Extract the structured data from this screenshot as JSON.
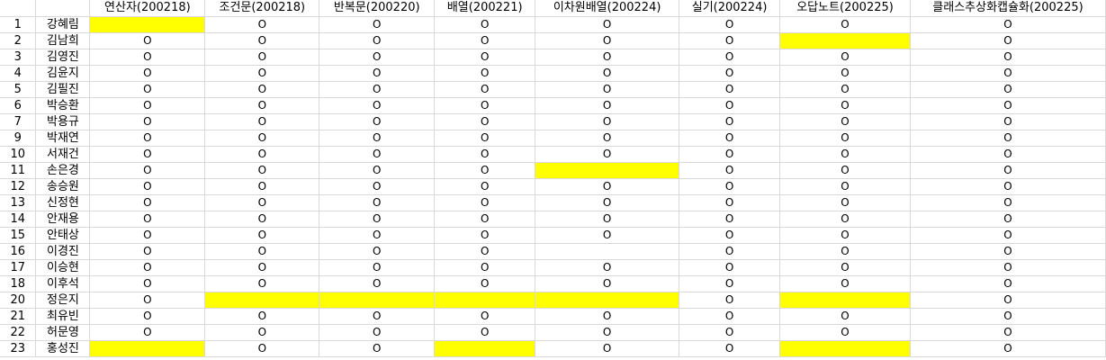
{
  "headers": [
    "",
    "",
    "연산자(200218)",
    "조건문(200218)",
    "반복문(200220)",
    "배열(200221)",
    "이차원배열(200224)",
    "실기(200224)",
    "오답노트(200225)",
    "클래스추상화캡슐화(200225)"
  ],
  "rows": [
    {
      "num": "1",
      "name": "강혜림",
      "cells": [
        "",
        "O",
        "O",
        "O",
        "O",
        "O",
        "O",
        "O"
      ]
    },
    {
      "num": "2",
      "name": "김남희",
      "cells": [
        "O",
        "O",
        "O",
        "O",
        "O",
        "O",
        "",
        "O"
      ]
    },
    {
      "num": "3",
      "name": "김영진",
      "cells": [
        "O",
        "O",
        "O",
        "O",
        "O",
        "O",
        "O",
        "O"
      ]
    },
    {
      "num": "4",
      "name": "김윤지",
      "cells": [
        "O",
        "O",
        "O",
        "O",
        "O",
        "O",
        "O",
        "O"
      ]
    },
    {
      "num": "5",
      "name": "김필진",
      "cells": [
        "O",
        "O",
        "O",
        "O",
        "O",
        "O",
        "O",
        "O"
      ]
    },
    {
      "num": "6",
      "name": "박승환",
      "cells": [
        "O",
        "O",
        "O",
        "O",
        "O",
        "O",
        "O",
        "O"
      ]
    },
    {
      "num": "7",
      "name": "박용규",
      "cells": [
        "O",
        "O",
        "O",
        "O",
        "O",
        "O",
        "O",
        "O"
      ]
    },
    {
      "num": "9",
      "name": "박재연",
      "cells": [
        "O",
        "O",
        "O",
        "O",
        "O",
        "O",
        "O",
        "O"
      ]
    },
    {
      "num": "10",
      "name": "서재건",
      "cells": [
        "O",
        "O",
        "O",
        "O",
        "O",
        "O",
        "O",
        "O"
      ]
    },
    {
      "num": "11",
      "name": "손은경",
      "cells": [
        "O",
        "O",
        "O",
        "O",
        "",
        "O",
        "O",
        "O"
      ]
    },
    {
      "num": "12",
      "name": "송승원",
      "cells": [
        "O",
        "O",
        "O",
        "O",
        "O",
        "O",
        "O",
        "O"
      ]
    },
    {
      "num": "13",
      "name": "신정현",
      "cells": [
        "O",
        "O",
        "O",
        "O",
        "O",
        "O",
        "O",
        "O"
      ]
    },
    {
      "num": "14",
      "name": "안재용",
      "cells": [
        "O",
        "O",
        "O",
        "O",
        "O",
        "O",
        "O",
        "O"
      ]
    },
    {
      "num": "15",
      "name": "안태상",
      "cells": [
        "O",
        "O",
        "O",
        "O",
        "O",
        "O",
        "O",
        "O"
      ]
    },
    {
      "num": "16",
      "name": "이경진",
      "cells": [
        "O",
        "O",
        "O",
        "O",
        "",
        "O",
        "O",
        "O"
      ]
    },
    {
      "num": "17",
      "name": "이승현",
      "cells": [
        "O",
        "O",
        "O",
        "O",
        "O",
        "O",
        "O",
        "O"
      ]
    },
    {
      "num": "18",
      "name": "이후석",
      "cells": [
        "O",
        "O",
        "O",
        "O",
        "O",
        "O",
        "O",
        "O"
      ]
    },
    {
      "num": "20",
      "name": "정은지",
      "cells": [
        "O",
        "",
        "",
        "",
        "",
        "O",
        "",
        "O"
      ]
    },
    {
      "num": "21",
      "name": "최유빈",
      "cells": [
        "O",
        "O",
        "O",
        "O",
        "O",
        "O",
        "O",
        "O"
      ]
    },
    {
      "num": "22",
      "name": "허문영",
      "cells": [
        "O",
        "O",
        "O",
        "O",
        "O",
        "O",
        "O",
        "O"
      ]
    },
    {
      "num": "23",
      "name": "홍성진",
      "cells": [
        "",
        "O",
        "O",
        "",
        "O",
        "O",
        "",
        "O"
      ]
    }
  ],
  "highlights": [
    [
      0,
      0
    ],
    [
      1,
      6
    ],
    [
      9,
      4
    ],
    [
      17,
      1
    ],
    [
      17,
      2
    ],
    [
      17,
      3
    ],
    [
      17,
      4
    ],
    [
      17,
      6
    ],
    [
      20,
      0
    ],
    [
      20,
      3
    ],
    [
      20,
      6
    ]
  ],
  "colors": {
    "highlight": "#ffff00",
    "gridline": "#d9d9d9",
    "text": "#000000"
  }
}
